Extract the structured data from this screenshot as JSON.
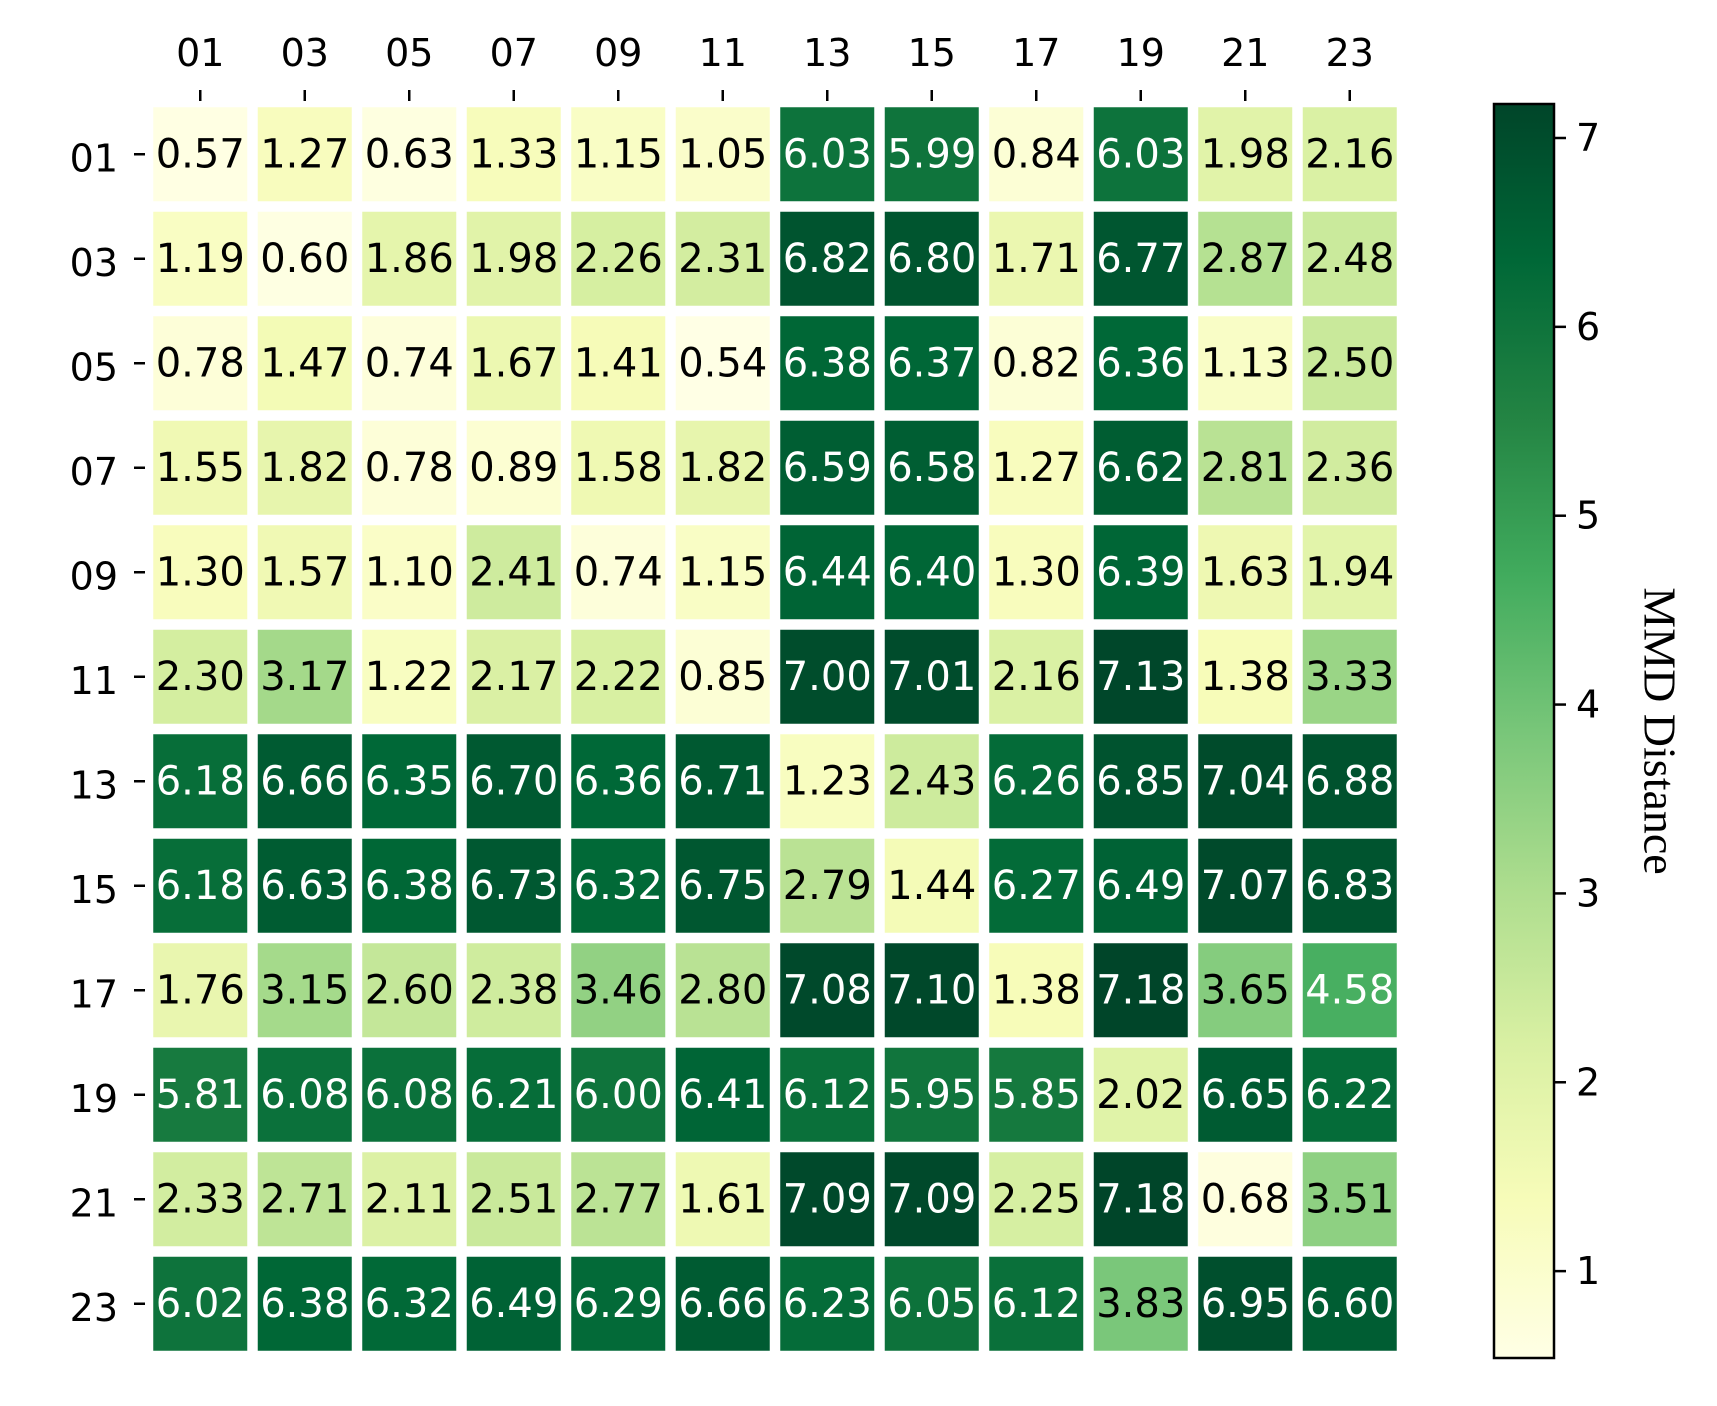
{
  "chart_data": {
    "type": "heatmap",
    "x_categories": [
      "01",
      "03",
      "05",
      "07",
      "09",
      "11",
      "13",
      "15",
      "17",
      "19",
      "21",
      "23"
    ],
    "y_categories": [
      "01",
      "03",
      "05",
      "07",
      "09",
      "11",
      "13",
      "15",
      "17",
      "19",
      "21",
      "23"
    ],
    "values": [
      [
        0.57,
        1.27,
        0.63,
        1.33,
        1.15,
        1.05,
        6.03,
        5.99,
        0.84,
        6.03,
        1.98,
        2.16
      ],
      [
        1.19,
        0.6,
        1.86,
        1.98,
        2.26,
        2.31,
        6.82,
        6.8,
        1.71,
        6.77,
        2.87,
        2.48
      ],
      [
        0.78,
        1.47,
        0.74,
        1.67,
        1.41,
        0.54,
        6.38,
        6.37,
        0.82,
        6.36,
        1.13,
        2.5
      ],
      [
        1.55,
        1.82,
        0.78,
        0.89,
        1.58,
        1.82,
        6.59,
        6.58,
        1.27,
        6.62,
        2.81,
        2.36
      ],
      [
        1.3,
        1.57,
        1.1,
        2.41,
        0.74,
        1.15,
        6.44,
        6.4,
        1.3,
        6.39,
        1.63,
        1.94
      ],
      [
        2.3,
        3.17,
        1.22,
        2.17,
        2.22,
        0.85,
        7.0,
        7.01,
        2.16,
        7.13,
        1.38,
        3.33
      ],
      [
        6.18,
        6.66,
        6.35,
        6.7,
        6.36,
        6.71,
        1.23,
        2.43,
        6.26,
        6.85,
        7.04,
        6.88
      ],
      [
        6.18,
        6.63,
        6.38,
        6.73,
        6.32,
        6.75,
        2.79,
        1.44,
        6.27,
        6.49,
        7.07,
        6.83
      ],
      [
        1.76,
        3.15,
        2.6,
        2.38,
        3.46,
        2.8,
        7.08,
        7.1,
        1.38,
        7.18,
        3.65,
        4.58
      ],
      [
        5.81,
        6.08,
        6.08,
        6.21,
        6.0,
        6.41,
        6.12,
        5.95,
        5.85,
        2.02,
        6.65,
        6.22
      ],
      [
        2.33,
        2.71,
        2.11,
        2.51,
        2.77,
        1.61,
        7.09,
        7.09,
        2.25,
        7.18,
        0.68,
        3.51
      ],
      [
        6.02,
        6.38,
        6.32,
        6.49,
        6.29,
        6.66,
        6.23,
        6.05,
        6.12,
        3.83,
        6.95,
        6.6
      ]
    ],
    "value_labels": [
      [
        "0.57",
        "1.27",
        "0.63",
        "1.33",
        "1.15",
        "1.05",
        "6.03",
        "5.99",
        "0.84",
        "6.03",
        "1.98",
        "2.16"
      ],
      [
        "1.19",
        "0.60",
        "1.86",
        "1.98",
        "2.26",
        "2.31",
        "6.82",
        "6.80",
        "1.71",
        "6.77",
        "2.87",
        "2.48"
      ],
      [
        "0.78",
        "1.47",
        "0.74",
        "1.67",
        "1.41",
        "0.54",
        "6.38",
        "6.37",
        "0.82",
        "6.36",
        "1.13",
        "2.50"
      ],
      [
        "1.55",
        "1.82",
        "0.78",
        "0.89",
        "1.58",
        "1.82",
        "6.59",
        "6.58",
        "1.27",
        "6.62",
        "2.81",
        "2.36"
      ],
      [
        "1.30",
        "1.57",
        "1.10",
        "2.41",
        "0.74",
        "1.15",
        "6.44",
        "6.40",
        "1.30",
        "6.39",
        "1.63",
        "1.94"
      ],
      [
        "2.30",
        "3.17",
        "1.22",
        "2.17",
        "2.22",
        "0.85",
        "7.00",
        "7.01",
        "2.16",
        "7.13",
        "1.38",
        "3.33"
      ],
      [
        "6.18",
        "6.66",
        "6.35",
        "6.70",
        "6.36",
        "6.71",
        "1.23",
        "2.43",
        "6.26",
        "6.85",
        "7.04",
        "6.88"
      ],
      [
        "6.18",
        "6.63",
        "6.38",
        "6.73",
        "6.32",
        "6.75",
        "2.79",
        "1.44",
        "6.27",
        "6.49",
        "7.07",
        "6.83"
      ],
      [
        "1.76",
        "3.15",
        "2.60",
        "2.38",
        "3.46",
        "2.80",
        "7.08",
        "7.10",
        "1.38",
        "7.18",
        "3.65",
        "4.58"
      ],
      [
        "5.81",
        "6.08",
        "6.08",
        "6.21",
        "6.00",
        "6.41",
        "6.12",
        "5.95",
        "5.85",
        "2.02",
        "6.65",
        "6.22"
      ],
      [
        "2.33",
        "2.71",
        "2.11",
        "2.51",
        "2.77",
        "1.61",
        "7.09",
        "7.09",
        "2.25",
        "7.18",
        "0.68",
        "3.51"
      ],
      [
        "6.02",
        "6.38",
        "6.32",
        "6.49",
        "6.29",
        "6.66",
        "6.23",
        "6.05",
        "6.12",
        "3.83",
        "6.95",
        "6.60"
      ]
    ],
    "colorbar_label": "MMD Distance",
    "clim": [
      0.54,
      7.18
    ],
    "cticks": [
      1,
      2,
      3,
      4,
      5,
      6,
      7
    ],
    "colormap": [
      "#ffffe5",
      "#f7fcb9",
      "#d9f0a3",
      "#addd8e",
      "#78c679",
      "#41ab5d",
      "#238443",
      "#006837",
      "#004529"
    ]
  }
}
